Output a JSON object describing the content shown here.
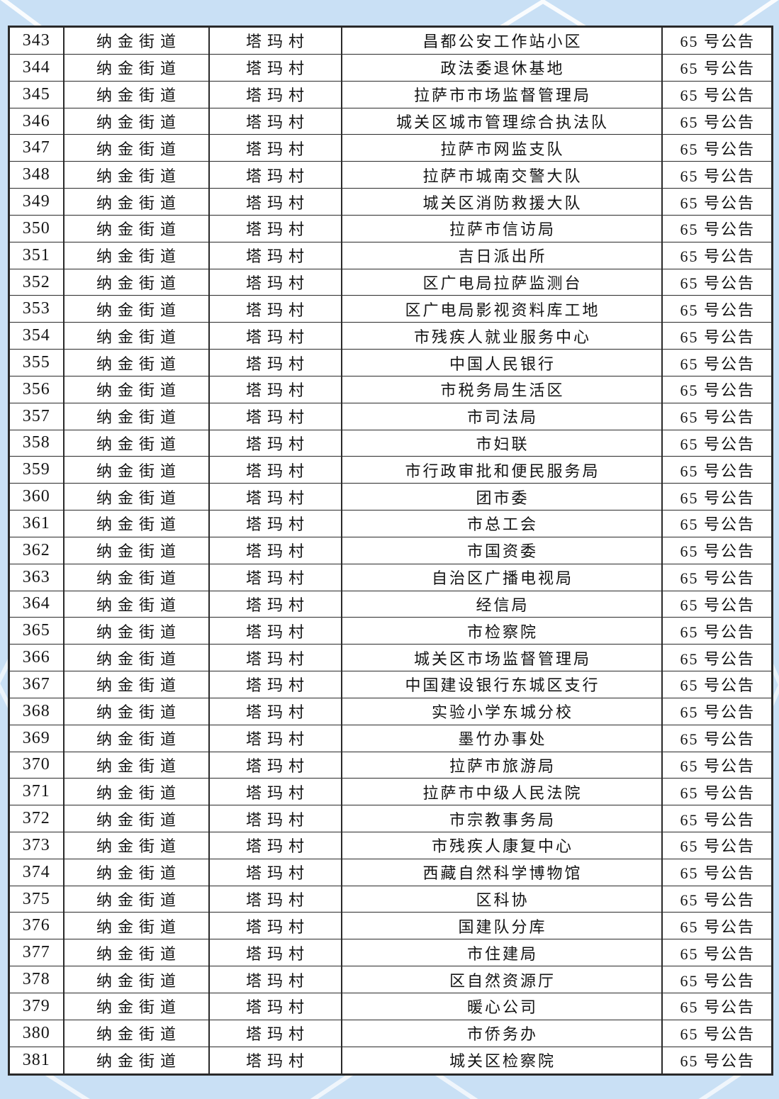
{
  "theme": {
    "page_background": "#c9e0f5",
    "pattern_line_color": "#ffffff",
    "table_background": "#ffffff",
    "grid_line_color": "#2a2a2a",
    "text_color": "#141414"
  },
  "table": {
    "rows": [
      {
        "no": "343",
        "street": "纳金街道",
        "village": "塔玛村",
        "site": "昌都公安工作站小区",
        "notice": "65 号公告"
      },
      {
        "no": "344",
        "street": "纳金街道",
        "village": "塔玛村",
        "site": "政法委退休基地",
        "notice": "65 号公告"
      },
      {
        "no": "345",
        "street": "纳金街道",
        "village": "塔玛村",
        "site": "拉萨市市场监督管理局",
        "notice": "65 号公告"
      },
      {
        "no": "346",
        "street": "纳金街道",
        "village": "塔玛村",
        "site": "城关区城市管理综合执法队",
        "notice": "65 号公告"
      },
      {
        "no": "347",
        "street": "纳金街道",
        "village": "塔玛村",
        "site": "拉萨市网监支队",
        "notice": "65 号公告"
      },
      {
        "no": "348",
        "street": "纳金街道",
        "village": "塔玛村",
        "site": "拉萨市城南交警大队",
        "notice": "65 号公告"
      },
      {
        "no": "349",
        "street": "纳金街道",
        "village": "塔玛村",
        "site": "城关区消防救援大队",
        "notice": "65 号公告"
      },
      {
        "no": "350",
        "street": "纳金街道",
        "village": "塔玛村",
        "site": "拉萨市信访局",
        "notice": "65 号公告"
      },
      {
        "no": "351",
        "street": "纳金街道",
        "village": "塔玛村",
        "site": "吉日派出所",
        "notice": "65 号公告"
      },
      {
        "no": "352",
        "street": "纳金街道",
        "village": "塔玛村",
        "site": "区广电局拉萨监测台",
        "notice": "65 号公告"
      },
      {
        "no": "353",
        "street": "纳金街道",
        "village": "塔玛村",
        "site": "区广电局影视资料库工地",
        "notice": "65 号公告"
      },
      {
        "no": "354",
        "street": "纳金街道",
        "village": "塔玛村",
        "site": "市残疾人就业服务中心",
        "notice": "65 号公告"
      },
      {
        "no": "355",
        "street": "纳金街道",
        "village": "塔玛村",
        "site": "中国人民银行",
        "notice": "65 号公告"
      },
      {
        "no": "356",
        "street": "纳金街道",
        "village": "塔玛村",
        "site": "市税务局生活区",
        "notice": "65 号公告"
      },
      {
        "no": "357",
        "street": "纳金街道",
        "village": "塔玛村",
        "site": "市司法局",
        "notice": "65 号公告"
      },
      {
        "no": "358",
        "street": "纳金街道",
        "village": "塔玛村",
        "site": "市妇联",
        "notice": "65 号公告"
      },
      {
        "no": "359",
        "street": "纳金街道",
        "village": "塔玛村",
        "site": "市行政审批和便民服务局",
        "notice": "65 号公告"
      },
      {
        "no": "360",
        "street": "纳金街道",
        "village": "塔玛村",
        "site": "团市委",
        "notice": "65 号公告"
      },
      {
        "no": "361",
        "street": "纳金街道",
        "village": "塔玛村",
        "site": "市总工会",
        "notice": "65 号公告"
      },
      {
        "no": "362",
        "street": "纳金街道",
        "village": "塔玛村",
        "site": "市国资委",
        "notice": "65 号公告"
      },
      {
        "no": "363",
        "street": "纳金街道",
        "village": "塔玛村",
        "site": "自治区广播电视局",
        "notice": "65 号公告"
      },
      {
        "no": "364",
        "street": "纳金街道",
        "village": "塔玛村",
        "site": "经信局",
        "notice": "65 号公告"
      },
      {
        "no": "365",
        "street": "纳金街道",
        "village": "塔玛村",
        "site": "市检察院",
        "notice": "65 号公告"
      },
      {
        "no": "366",
        "street": "纳金街道",
        "village": "塔玛村",
        "site": "城关区市场监督管理局",
        "notice": "65 号公告"
      },
      {
        "no": "367",
        "street": "纳金街道",
        "village": "塔玛村",
        "site": "中国建设银行东城区支行",
        "notice": "65 号公告"
      },
      {
        "no": "368",
        "street": "纳金街道",
        "village": "塔玛村",
        "site": "实验小学东城分校",
        "notice": "65 号公告"
      },
      {
        "no": "369",
        "street": "纳金街道",
        "village": "塔玛村",
        "site": "墨竹办事处",
        "notice": "65 号公告"
      },
      {
        "no": "370",
        "street": "纳金街道",
        "village": "塔玛村",
        "site": "拉萨市旅游局",
        "notice": "65 号公告"
      },
      {
        "no": "371",
        "street": "纳金街道",
        "village": "塔玛村",
        "site": "拉萨市中级人民法院",
        "notice": "65 号公告"
      },
      {
        "no": "372",
        "street": "纳金街道",
        "village": "塔玛村",
        "site": "市宗教事务局",
        "notice": "65 号公告"
      },
      {
        "no": "373",
        "street": "纳金街道",
        "village": "塔玛村",
        "site": "市残疾人康复中心",
        "notice": "65 号公告"
      },
      {
        "no": "374",
        "street": "纳金街道",
        "village": "塔玛村",
        "site": "西藏自然科学博物馆",
        "notice": "65 号公告"
      },
      {
        "no": "375",
        "street": "纳金街道",
        "village": "塔玛村",
        "site": "区科协",
        "notice": "65 号公告"
      },
      {
        "no": "376",
        "street": "纳金街道",
        "village": "塔玛村",
        "site": "国建队分库",
        "notice": "65 号公告"
      },
      {
        "no": "377",
        "street": "纳金街道",
        "village": "塔玛村",
        "site": "市住建局",
        "notice": "65 号公告"
      },
      {
        "no": "378",
        "street": "纳金街道",
        "village": "塔玛村",
        "site": "区自然资源厅",
        "notice": "65 号公告"
      },
      {
        "no": "379",
        "street": "纳金街道",
        "village": "塔玛村",
        "site": "暖心公司",
        "notice": "65 号公告"
      },
      {
        "no": "380",
        "street": "纳金街道",
        "village": "塔玛村",
        "site": "市侨务办",
        "notice": "65 号公告"
      },
      {
        "no": "381",
        "street": "纳金街道",
        "village": "塔玛村",
        "site": "城关区检察院",
        "notice": "65 号公告"
      }
    ]
  }
}
